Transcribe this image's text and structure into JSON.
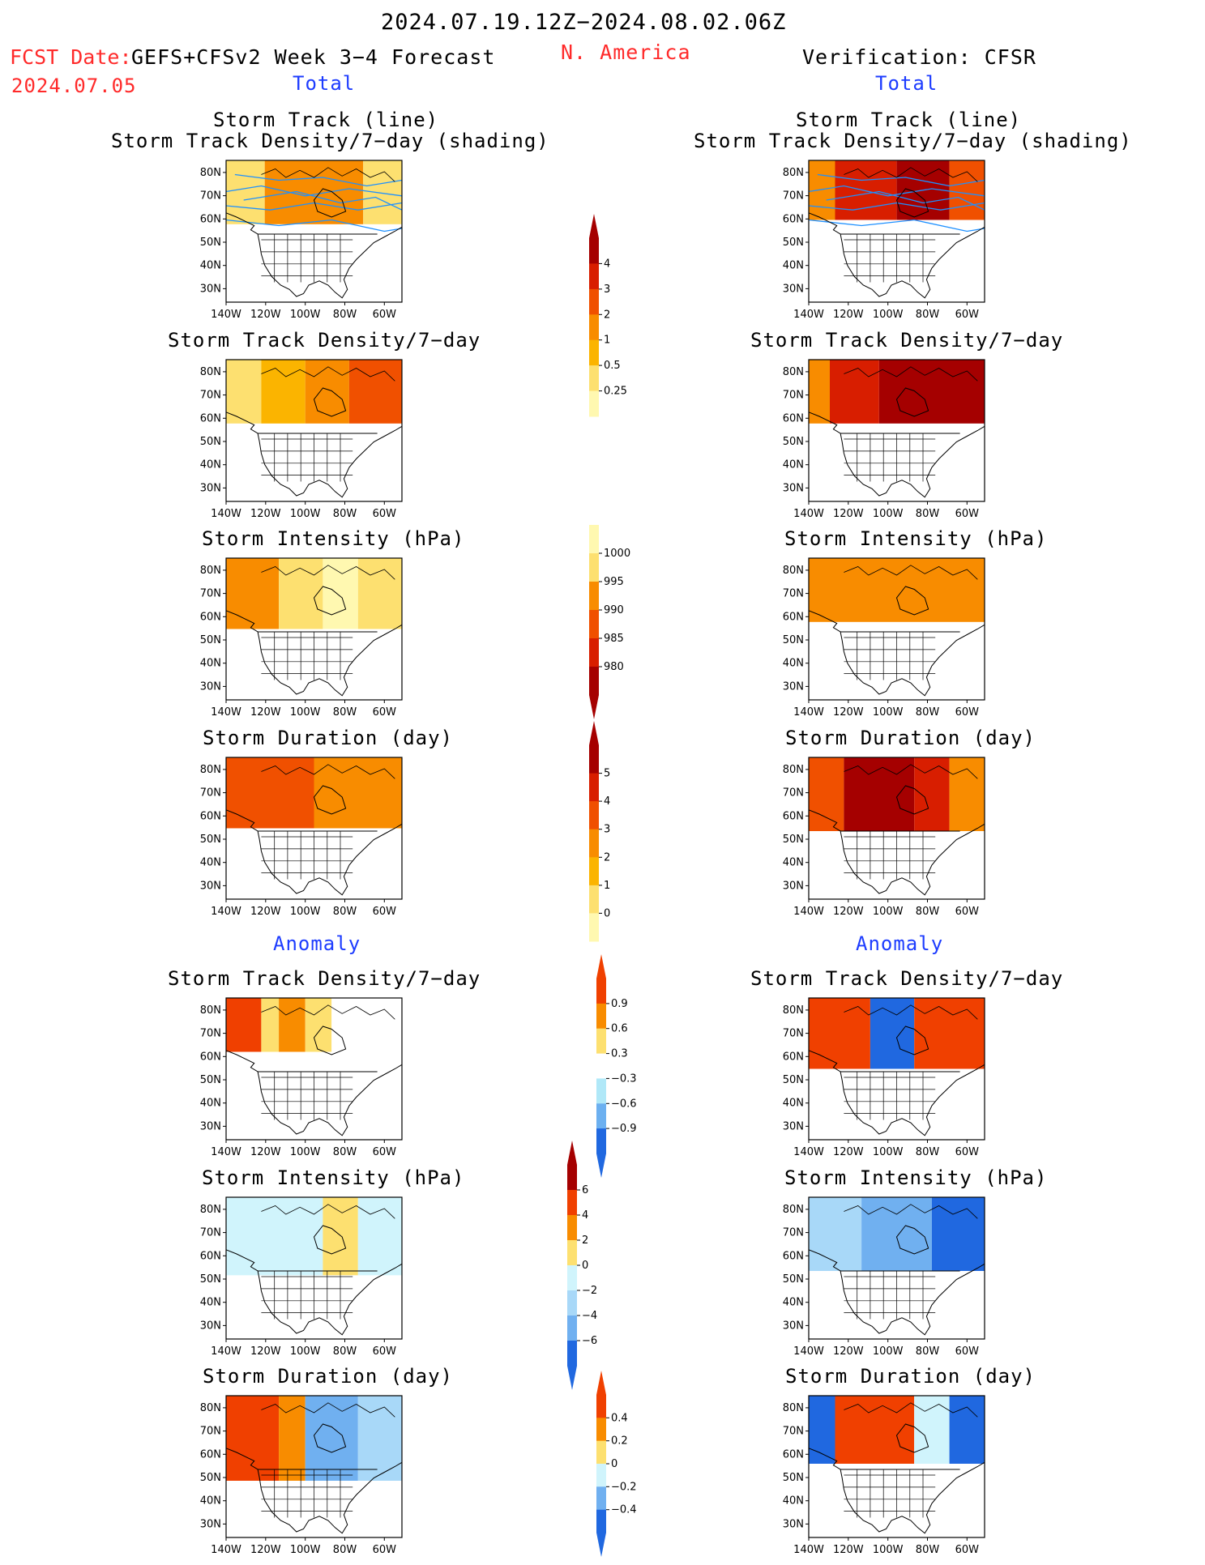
{
  "header": {
    "date_range": "2024.07.19.12Z−2024.08.02.06Z",
    "fcst_label": "FCST Date:",
    "fcst_model": "GEFS+CFSv2 Week 3−4 Forecast",
    "fcst_date": "2024.07.05",
    "region": "N. America",
    "verification": "Verification: CFSR",
    "left_total": "Total",
    "right_total": "Total",
    "left_anomaly": "Anomaly",
    "right_anomaly": "Anomaly"
  },
  "titles": {
    "track_line": "Storm Track (line)",
    "track_density_shading": "Storm Track Density/7−day (shading)",
    "track_density": "Storm Track Density/7−day",
    "intensity": "Storm Intensity (hPa)",
    "duration": "Storm Duration (day)"
  },
  "axes": {
    "lat_labels": [
      "80N",
      "70N",
      "60N",
      "50N",
      "40N",
      "30N"
    ],
    "lon_labels": [
      "140W",
      "120W",
      "100W",
      "80W",
      "60W"
    ]
  },
  "colorbars": {
    "density_total": {
      "labels": [
        "4",
        "3",
        "2",
        "1",
        "0.5",
        "0.25"
      ],
      "colors": [
        "#a50000",
        "#d81e00",
        "#f05000",
        "#f88c00",
        "#fbb400",
        "#fde070",
        "#fff8b0"
      ]
    },
    "intensity_total": {
      "labels": [
        "1000",
        "995",
        "990",
        "985",
        "980"
      ],
      "colors": [
        "#fff8b0",
        "#fde070",
        "#f88c00",
        "#f05000",
        "#d81e00",
        "#a50000"
      ]
    },
    "duration_total": {
      "labels": [
        "5",
        "4",
        "3",
        "2",
        "1",
        "0"
      ],
      "colors": [
        "#a50000",
        "#d81e00",
        "#f05000",
        "#f88c00",
        "#fbb400",
        "#fde070",
        "#fff8b0"
      ]
    },
    "density_anom": {
      "labels": [
        "0.9",
        "0.6",
        "0.3",
        "−0.3",
        "−0.6",
        "−0.9"
      ],
      "colors": [
        "#f04000",
        "#f88c00",
        "#fde070",
        "#ffffff",
        "#b0e8f8",
        "#6cb0f0",
        "#2068e0"
      ]
    },
    "intensity_anom": {
      "labels": [
        "6",
        "4",
        "2",
        "0",
        "−2",
        "−4",
        "−6"
      ],
      "colors": [
        "#a50000",
        "#f04000",
        "#f88c00",
        "#fde070",
        "#d0f4fc",
        "#a8d8f8",
        "#70b0f0",
        "#2068e0"
      ]
    },
    "duration_anom": {
      "labels": [
        "0.4",
        "0.2",
        "0",
        "−0.2",
        "−0.4"
      ],
      "colors": [
        "#f04000",
        "#f88c00",
        "#fde070",
        "#d0f4fc",
        "#70b0f0",
        "#2068e0"
      ]
    }
  },
  "colors": {
    "header_red": "#ff2a2a",
    "header_blue": "#1d3cff",
    "track_line": "#1e90ff"
  },
  "panels": [
    {
      "id": "L-track",
      "title_key": "track_line",
      "title2_key": "track_density_shading",
      "bands": [
        [
          "#fde070",
          0.0,
          0.22
        ],
        [
          "#f88c00",
          0.22,
          0.78
        ],
        [
          "#fde070",
          0.78,
          1.0
        ]
      ],
      "south_extent": 0.45,
      "tracks": true
    },
    {
      "id": "R-track",
      "title_key": "track_line",
      "title2_key": "track_density_shading",
      "bands": [
        [
          "#f88c00",
          0.0,
          0.15
        ],
        [
          "#d81e00",
          0.15,
          0.5
        ],
        [
          "#a50000",
          0.5,
          0.8
        ],
        [
          "#f05000",
          0.8,
          1.0
        ]
      ],
      "south_extent": 0.42,
      "tracks": true
    },
    {
      "id": "L-density",
      "title_key": "track_density",
      "bands": [
        [
          "#fde070",
          0.0,
          0.2
        ],
        [
          "#fbb400",
          0.2,
          0.45
        ],
        [
          "#f88c00",
          0.45,
          0.7
        ],
        [
          "#f05000",
          0.7,
          1.0
        ]
      ],
      "south_extent": 0.45
    },
    {
      "id": "R-density",
      "title_key": "track_density",
      "bands": [
        [
          "#f88c00",
          0.0,
          0.12
        ],
        [
          "#d81e00",
          0.12,
          0.4
        ],
        [
          "#a50000",
          0.4,
          1.0
        ]
      ],
      "south_extent": 0.45
    },
    {
      "id": "L-intensity",
      "title_key": "intensity",
      "bands": [
        [
          "#f88c00",
          0.0,
          0.3
        ],
        [
          "#fde070",
          0.3,
          0.55
        ],
        [
          "#fff8b0",
          0.55,
          0.75
        ],
        [
          "#fde070",
          0.75,
          1.0
        ]
      ],
      "south_extent": 0.5
    },
    {
      "id": "R-intensity",
      "title_key": "intensity",
      "bands": [
        [
          "#f88c00",
          0.0,
          1.0
        ]
      ],
      "south_extent": 0.45
    },
    {
      "id": "L-duration",
      "title_key": "duration",
      "bands": [
        [
          "#f05000",
          0.0,
          0.5
        ],
        [
          "#f88c00",
          0.5,
          1.0
        ]
      ],
      "south_extent": 0.5
    },
    {
      "id": "R-duration",
      "title_key": "duration",
      "bands": [
        [
          "#f05000",
          0.0,
          0.2
        ],
        [
          "#a50000",
          0.2,
          0.6
        ],
        [
          "#d81e00",
          0.6,
          0.8
        ],
        [
          "#f88c00",
          0.8,
          1.0
        ]
      ],
      "south_extent": 0.52
    },
    {
      "id": "L-anom-density",
      "title_key": "track_density",
      "bands": [
        [
          "#f04000",
          0.0,
          0.2
        ],
        [
          "#fde070",
          0.2,
          0.3
        ],
        [
          "#f88c00",
          0.3,
          0.45
        ],
        [
          "#fde070",
          0.45,
          0.6
        ],
        [
          "#ffffff",
          0.6,
          1.0
        ]
      ],
      "south_extent": 0.38
    },
    {
      "id": "R-anom-density",
      "title_key": "track_density",
      "bands": [
        [
          "#f04000",
          0.0,
          0.35
        ],
        [
          "#2068e0",
          0.35,
          0.6
        ],
        [
          "#f04000",
          0.6,
          1.0
        ]
      ],
      "south_extent": 0.5
    },
    {
      "id": "L-anom-intensity",
      "title_key": "intensity",
      "bands": [
        [
          "#d0f4fc",
          0.0,
          0.55
        ],
        [
          "#fde070",
          0.55,
          0.75
        ],
        [
          "#d0f4fc",
          0.75,
          1.0
        ]
      ],
      "south_extent": 0.55
    },
    {
      "id": "R-anom-intensity",
      "title_key": "intensity",
      "bands": [
        [
          "#a8d8f8",
          0.0,
          0.3
        ],
        [
          "#70b0f0",
          0.3,
          0.7
        ],
        [
          "#2068e0",
          0.7,
          1.0
        ]
      ],
      "south_extent": 0.52
    },
    {
      "id": "L-anom-duration",
      "title_key": "duration",
      "bands": [
        [
          "#f04000",
          0.0,
          0.3
        ],
        [
          "#f88c00",
          0.3,
          0.45
        ],
        [
          "#70b0f0",
          0.45,
          0.75
        ],
        [
          "#a8d8f8",
          0.75,
          1.0
        ]
      ],
      "south_extent": 0.6
    },
    {
      "id": "R-anom-duration",
      "title_key": "duration",
      "bands": [
        [
          "#2068e0",
          0.0,
          0.15
        ],
        [
          "#f04000",
          0.15,
          0.6
        ],
        [
          "#d0f4fc",
          0.6,
          0.8
        ],
        [
          "#2068e0",
          0.8,
          1.0
        ]
      ],
      "south_extent": 0.48
    }
  ]
}
